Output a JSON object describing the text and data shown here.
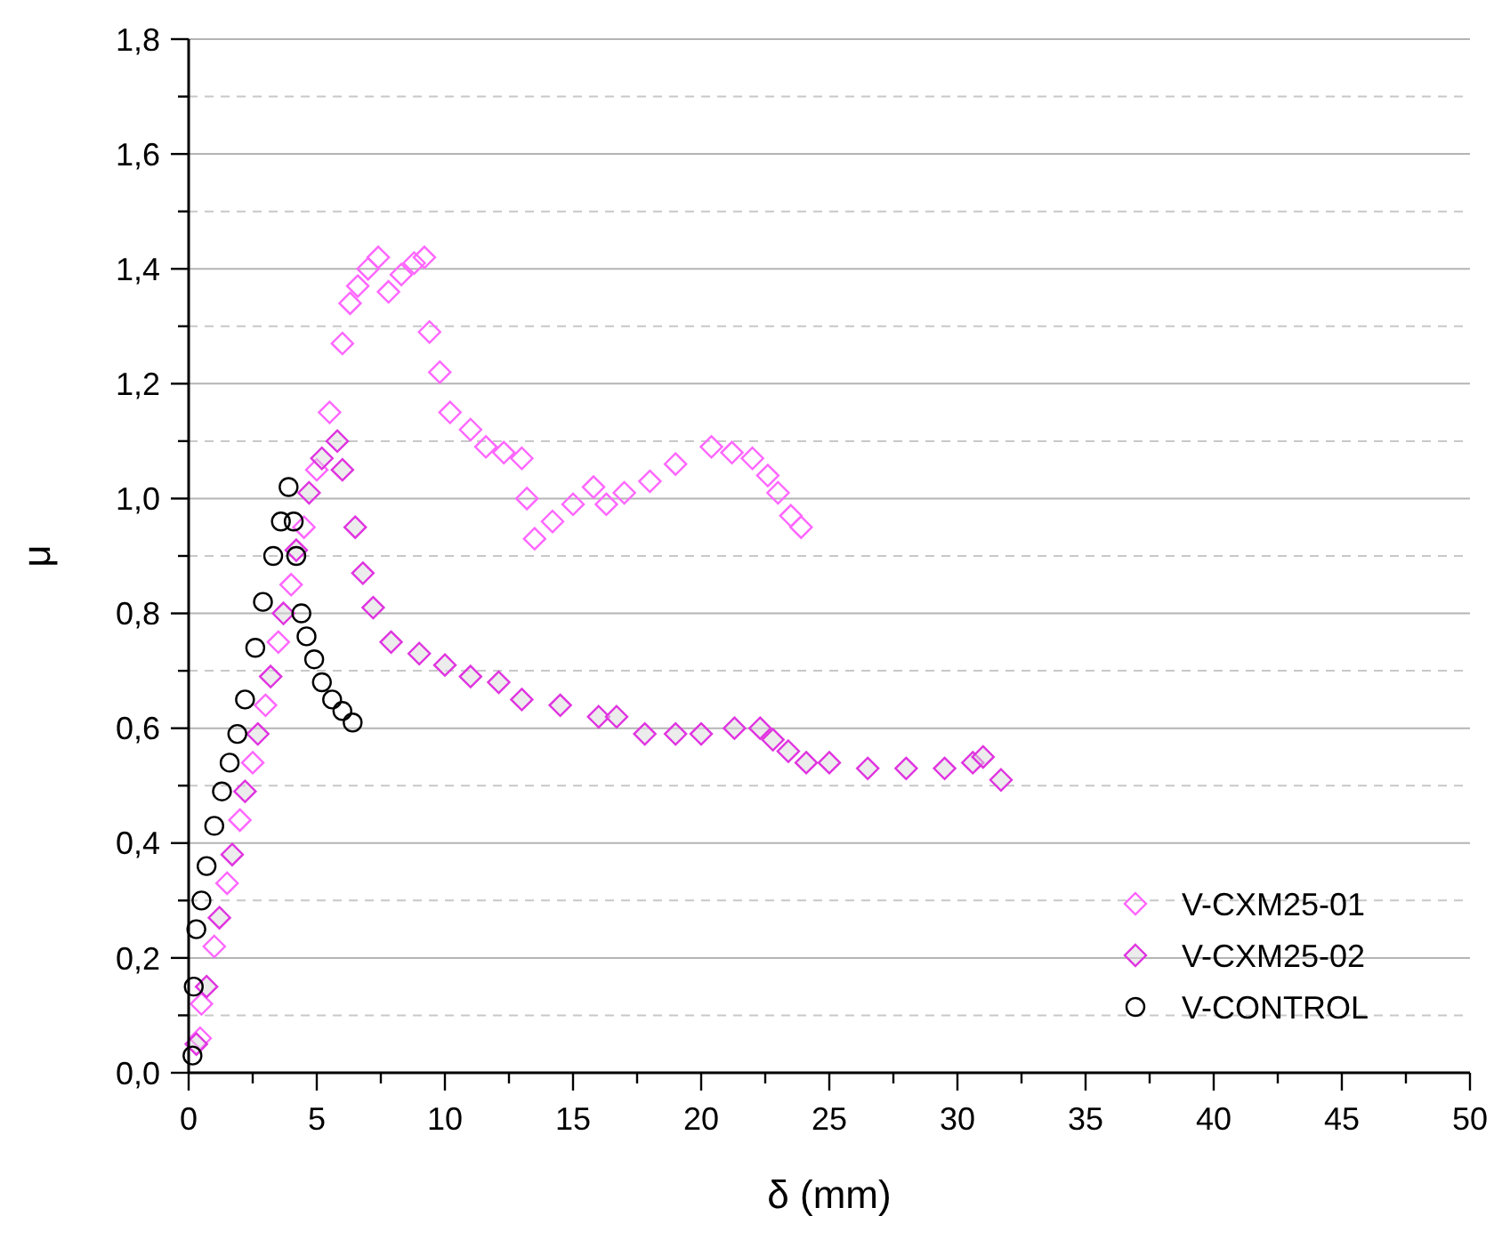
{
  "chart_data": {
    "type": "scatter",
    "xlabel": "δ (mm)",
    "ylabel": "μ",
    "xlim": [
      0,
      50
    ],
    "ylim": [
      0,
      1.8
    ],
    "xticks": [
      0,
      {
        "value": 2.5,
        "label": null
      },
      5,
      {
        "value": 7.5,
        "label": null
      },
      10,
      {
        "value": 12.5,
        "label": null
      },
      15,
      {
        "value": 17.5,
        "label": null
      },
      20,
      {
        "value": 22.5,
        "label": null
      },
      25,
      {
        "value": 27.5,
        "label": null
      },
      30,
      {
        "value": 32.5,
        "label": null
      },
      35,
      {
        "value": 37.5,
        "label": null
      },
      40,
      {
        "value": 42.5,
        "label": null
      },
      45,
      {
        "value": 47.5,
        "label": null
      },
      50
    ],
    "yticks": [
      {
        "value": 0,
        "label": "0,0"
      },
      {
        "value": 0.1,
        "label": null
      },
      {
        "value": 0.2,
        "label": "0,2"
      },
      {
        "value": 0.3,
        "label": null
      },
      {
        "value": 0.4,
        "label": "0,4"
      },
      {
        "value": 0.5,
        "label": null
      },
      {
        "value": 0.6,
        "label": "0,6"
      },
      {
        "value": 0.7,
        "label": null
      },
      {
        "value": 0.8,
        "label": "0,8"
      },
      {
        "value": 0.9,
        "label": null
      },
      {
        "value": 1.0,
        "label": "1,0"
      },
      {
        "value": 1.1,
        "label": null
      },
      {
        "value": 1.2,
        "label": "1,2"
      },
      {
        "value": 1.3,
        "label": null
      },
      {
        "value": 1.4,
        "label": "1,4"
      },
      {
        "value": 1.5,
        "label": null
      },
      {
        "value": 1.6,
        "label": "1,6"
      },
      {
        "value": 1.7,
        "label": null
      },
      {
        "value": 1.8,
        "label": "1,8"
      }
    ],
    "grid": "y",
    "legend": "bottom right",
    "series": [
      {
        "name": "V-CXM25-01",
        "color": "#ff66ff",
        "marker": "diamond",
        "x": [
          0.45,
          0.5,
          1,
          1.5,
          2,
          2.5,
          3,
          3.5,
          4,
          4.5,
          5,
          5.5,
          6,
          6.3,
          6.6,
          7,
          7.4,
          7.8,
          8.3,
          8.8,
          9.2,
          9.4,
          9.8,
          10.2,
          11,
          11.6,
          12.3,
          13,
          13.2,
          13.5,
          14.2,
          15,
          15.8,
          16.3,
          17,
          18,
          19,
          20.4,
          21.2,
          22,
          22.6,
          23,
          23.5,
          23.9
        ],
        "values": [
          0.06,
          0.12,
          0.22,
          0.33,
          0.44,
          0.54,
          0.64,
          0.75,
          0.85,
          0.95,
          1.05,
          1.15,
          1.27,
          1.34,
          1.37,
          1.4,
          1.42,
          1.36,
          1.39,
          1.41,
          1.42,
          1.29,
          1.22,
          1.15,
          1.12,
          1.09,
          1.08,
          1.07,
          1.0,
          0.93,
          0.96,
          0.99,
          1.02,
          0.99,
          1.01,
          1.03,
          1.06,
          1.09,
          1.08,
          1.07,
          1.04,
          1.01,
          0.97,
          0.95
        ]
      },
      {
        "name": "V-CXM25-02",
        "color": "#e033e0",
        "marker": "diamond",
        "x": [
          0.3,
          0.7,
          1.2,
          1.7,
          2.2,
          2.7,
          3.2,
          3.7,
          4.2,
          4.7,
          5.2,
          5.8,
          6,
          6.5,
          6.8,
          7.2,
          7.9,
          9,
          10,
          11,
          12.1,
          13,
          14.5,
          16,
          16.7,
          17.8,
          19,
          20,
          21.3,
          22.3,
          22.8,
          23.4,
          24.1,
          25,
          26.5,
          28,
          29.5,
          30.6,
          31,
          31.7
        ],
        "values": [
          0.05,
          0.15,
          0.27,
          0.38,
          0.49,
          0.59,
          0.69,
          0.8,
          0.91,
          1.01,
          1.07,
          1.1,
          1.05,
          0.95,
          0.87,
          0.81,
          0.75,
          0.73,
          0.71,
          0.69,
          0.68,
          0.65,
          0.64,
          0.62,
          0.62,
          0.59,
          0.59,
          0.59,
          0.6,
          0.6,
          0.58,
          0.56,
          0.54,
          0.54,
          0.53,
          0.53,
          0.53,
          0.54,
          0.55,
          0.51
        ]
      },
      {
        "name": "V-CONTROL",
        "color": "#000000",
        "marker": "circle",
        "x": [
          0.15,
          0.2,
          0.3,
          0.5,
          0.7,
          1,
          1.3,
          1.6,
          1.9,
          2.2,
          2.6,
          2.9,
          3.3,
          3.6,
          3.9,
          4.1,
          4.2,
          4.4,
          4.6,
          4.9,
          5.2,
          5.6,
          6,
          6.4
        ],
        "values": [
          0.03,
          0.15,
          0.25,
          0.3,
          0.36,
          0.43,
          0.49,
          0.54,
          0.59,
          0.65,
          0.74,
          0.82,
          0.9,
          0.96,
          1.02,
          0.96,
          0.9,
          0.8,
          0.76,
          0.72,
          0.68,
          0.65,
          0.63,
          0.61
        ]
      }
    ]
  }
}
